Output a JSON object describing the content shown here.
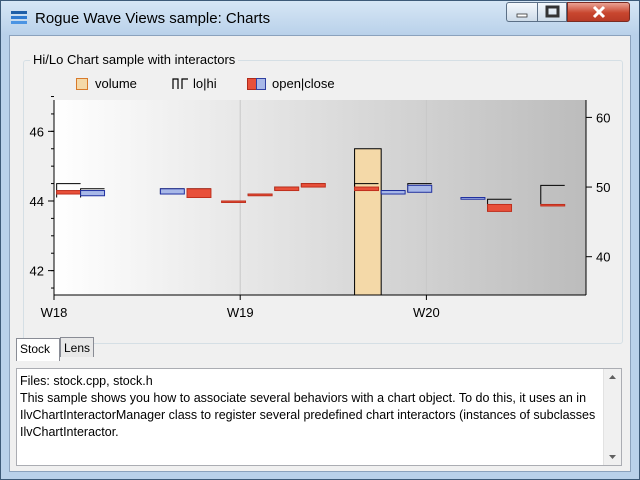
{
  "window": {
    "title": "Rogue Wave Views sample: Charts",
    "icon": "chart-app-icon"
  },
  "group_title": "Hi/Lo Chart sample with interactors",
  "legend": {
    "items": [
      {
        "label": "volume",
        "icon": "volume-swatch-icon",
        "color": "#f4d9a8"
      },
      {
        "label": "lo|hi",
        "icon": "lohi-step-icon",
        "color": "#000000"
      },
      {
        "label": "open|close",
        "icon": "openclose-swatch-icon",
        "color_up": "#e8503a",
        "color_down": "#a8b8e8"
      }
    ]
  },
  "chart_data": {
    "type": "hilo",
    "x_tick_labels": [
      "W18",
      "W19",
      "W20"
    ],
    "y_left": {
      "ticks": [
        42,
        44,
        46
      ],
      "range": [
        41.3,
        46.9
      ]
    },
    "y_right": {
      "ticks": [
        40,
        50,
        60
      ],
      "range": [
        34.5,
        62.5
      ]
    },
    "candles": [
      {
        "day": 0.1,
        "open": 44.2,
        "close": 44.3,
        "low": 44.1,
        "high": 44.5
      },
      {
        "day": 1.0,
        "open": 44.3,
        "close": 44.15,
        "low": 44.1,
        "high": 44.35
      },
      {
        "day": 4.0,
        "open": 44.35,
        "close": 44.2,
        "low": 44.2,
        "high": 44.35
      },
      {
        "day": 5.0,
        "open": 44.1,
        "close": 44.35,
        "low": 44.1,
        "high": 44.35
      },
      {
        "day": 6.3,
        "open": 44.0,
        "close": 44.0,
        "low": 44.0,
        "high": 44.0
      },
      {
        "day": 7.3,
        "open": 44.15,
        "close": 44.2,
        "low": 44.15,
        "high": 44.2
      },
      {
        "day": 8.3,
        "open": 44.3,
        "close": 44.4,
        "low": 44.3,
        "high": 44.4
      },
      {
        "day": 9.3,
        "open": 44.4,
        "close": 44.5,
        "low": 44.4,
        "high": 44.5
      },
      {
        "day": 11.3,
        "open": 44.3,
        "close": 44.4,
        "low": 44.3,
        "high": 44.5
      },
      {
        "day": 12.3,
        "open": 44.3,
        "close": 44.2,
        "low": 44.2,
        "high": 44.3
      },
      {
        "day": 13.3,
        "open": 44.45,
        "close": 44.25,
        "low": 44.25,
        "high": 44.5
      },
      {
        "day": 15.3,
        "open": 44.1,
        "close": 44.05,
        "low": 44.05,
        "high": 44.1
      },
      {
        "day": 16.3,
        "open": 43.7,
        "close": 43.9,
        "low": 43.7,
        "high": 44.05
      },
      {
        "day": 18.3,
        "open": 43.9,
        "close": 43.9,
        "low": 43.9,
        "high": 44.45
      }
    ],
    "volume_highlight": {
      "day": 11.8,
      "volume": 55.5
    },
    "gradient": {
      "from": "#ffffff",
      "to": "#bcbcbc"
    }
  },
  "tabs": [
    {
      "label": "Stock",
      "active": true
    },
    {
      "label": "Lens",
      "active": false
    }
  ],
  "description": {
    "lines": [
      "Files: stock.cpp, stock.h",
      "This sample shows you how to associate several behaviors with a chart object. To do this, it uses an in",
      "IlvChartInteractorManager class to register several predefined chart interactors (instances of subclasses",
      "IlvChartInteractor."
    ]
  }
}
